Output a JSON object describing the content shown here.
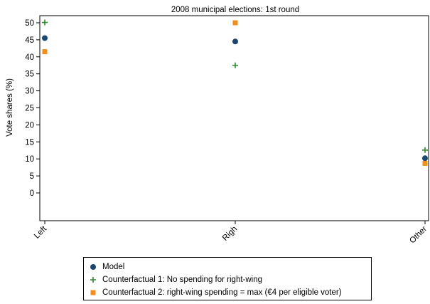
{
  "chart_data": {
    "type": "scatter",
    "title": "2008 municipal elections: 1st round",
    "xlabel": "",
    "ylabel": "Vote shares (%)",
    "categories": [
      "Left",
      "Righ",
      "Other"
    ],
    "ylim": [
      0,
      50
    ],
    "yticks": [
      0,
      5,
      10,
      15,
      20,
      25,
      30,
      35,
      40,
      45,
      50
    ],
    "grid": false,
    "legend_position": "bottom",
    "series": [
      {
        "name": "Model",
        "marker": "circle",
        "color": "#1a476f",
        "values": [
          45.5,
          44.5,
          10.2
        ]
      },
      {
        "name": "Counterfactual 1: No spending for right-wing",
        "marker": "plus",
        "color": "#2d8a2d",
        "values": [
          50.1,
          37.5,
          12.6
        ]
      },
      {
        "name": "Counterfactual 2: right-wing spending = max (€4 per eligible voter)",
        "marker": "square",
        "color": "#f28e1c",
        "values": [
          41.5,
          50.0,
          8.7
        ]
      }
    ]
  }
}
